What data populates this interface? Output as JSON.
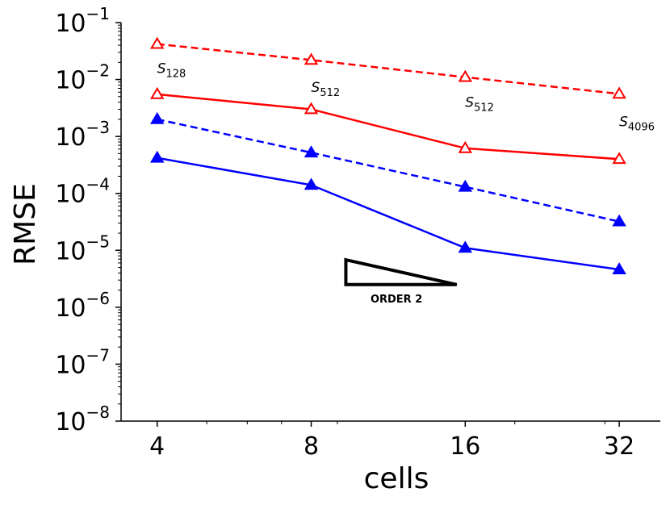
{
  "chart_data": {
    "type": "line",
    "title": "",
    "xlabel": "cells",
    "ylabel": "RMSE",
    "xscale": "log2",
    "yscale": "log10",
    "x": [
      4,
      8,
      16,
      32
    ],
    "x_tick_labels": [
      "4",
      "8",
      "16",
      "32"
    ],
    "xlim": [
      3.4,
      38.5
    ],
    "ylim": [
      1e-08,
      0.1
    ],
    "y_ticks": [
      {
        "base": "10",
        "exp": "-8",
        "value": 1e-08
      },
      {
        "base": "10",
        "exp": "-7",
        "value": 1e-07
      },
      {
        "base": "10",
        "exp": "-6",
        "value": 1e-06
      },
      {
        "base": "10",
        "exp": "-5",
        "value": 1e-05
      },
      {
        "base": "10",
        "exp": "-4",
        "value": 0.0001
      },
      {
        "base": "10",
        "exp": "-3",
        "value": 0.001
      },
      {
        "base": "10",
        "exp": "-2",
        "value": 0.01
      },
      {
        "base": "10",
        "exp": "-1",
        "value": 0.1
      }
    ],
    "series": [
      {
        "name": "red-dashed",
        "color": "#ff0000",
        "dash": true,
        "marker": "triangle-open",
        "values": [
          0.042,
          0.022,
          0.011,
          0.0056
        ]
      },
      {
        "name": "red-solid",
        "color": "#ff0000",
        "dash": false,
        "marker": "triangle-open",
        "values": [
          0.0055,
          0.003,
          0.00062,
          0.0004
        ]
      },
      {
        "name": "blue-dashed",
        "color": "#0000ff",
        "dash": true,
        "marker": "triangle-filled",
        "values": [
          0.002,
          0.00052,
          0.00013,
          3.2e-05
        ]
      },
      {
        "name": "blue-solid",
        "color": "#0000ff",
        "dash": false,
        "marker": "triangle-filled",
        "values": [
          0.00042,
          0.00014,
          1.1e-05,
          4.6e-06
        ]
      }
    ],
    "annotations": [
      {
        "base": "S",
        "sub": "128",
        "x": 4,
        "y": 0.013
      },
      {
        "base": "S",
        "sub": "512",
        "x": 8,
        "y": 0.006
      },
      {
        "base": "S",
        "sub": "512",
        "x": 16,
        "y": 0.0033
      },
      {
        "base": "S",
        "sub": "4096",
        "x": 32,
        "y": 0.0015
      }
    ],
    "order_triangle": {
      "label": "ORDER 2",
      "x_left": 9.35,
      "x_right": 15.4,
      "y_bottom": 2.5e-06,
      "y_top": 6.8e-06,
      "color": "#000000"
    },
    "grid": false
  }
}
